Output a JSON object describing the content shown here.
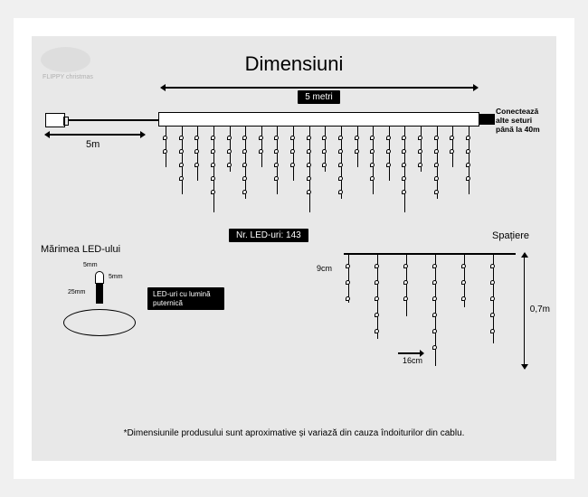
{
  "title": "Dimensiuni",
  "logo_text": "FLIPPY christmas",
  "cable": {
    "length_label": "5m"
  },
  "main": {
    "width_label": "5 metri",
    "led_count_label": "Nr. LED-uri: 143",
    "connect_text": "Conectează alte seturi până la 40m"
  },
  "strands": {
    "count": 20,
    "heights_pattern": [
      45,
      75,
      60,
      95,
      50,
      80
    ]
  },
  "led_size": {
    "title": "Mărimea LED-ului",
    "dim_w": "5mm",
    "dim_h": "5mm",
    "dim_body": "25mm",
    "desc": "LED-uri cu lumină puternică"
  },
  "spacing": {
    "title": "Spațiere",
    "led_gap": "9cm",
    "strand_gap": "16cm",
    "height": "0,7m",
    "strand_count": 6,
    "heights": [
      55,
      95,
      70,
      125,
      60,
      100
    ]
  },
  "footnote": "*Dimensiunile produsului sunt aproximative și variază din cauza îndoiturilor din cablu.",
  "colors": {
    "bg": "#e8e8e8",
    "line": "#000000",
    "badge_bg": "#000000",
    "badge_text": "#ffffff"
  }
}
